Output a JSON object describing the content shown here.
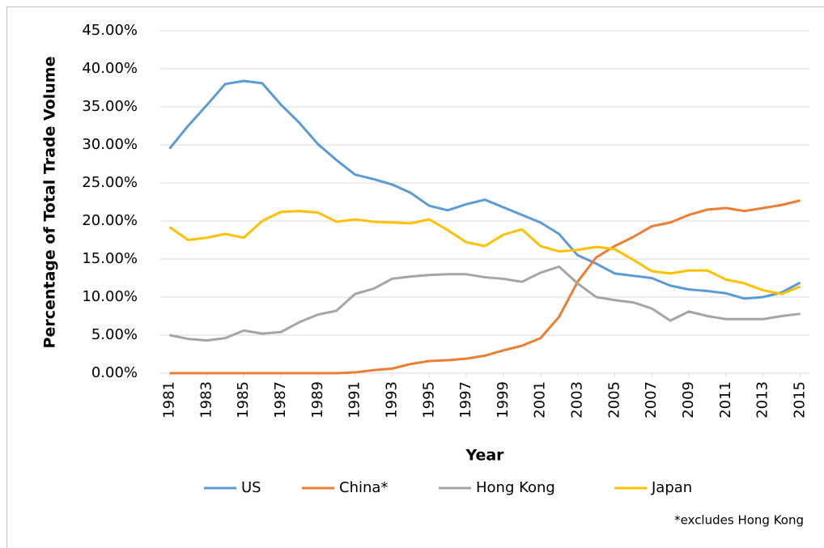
{
  "chart_data": {
    "type": "line",
    "y_label": "Percentage of Total Trade Volume",
    "x_label": "Year",
    "annotation": "*excludes Hong Kong",
    "x": [
      1981,
      1982,
      1983,
      1984,
      1985,
      1986,
      1987,
      1988,
      1989,
      1990,
      1991,
      1992,
      1993,
      1994,
      1995,
      1996,
      1997,
      1998,
      1999,
      2000,
      2001,
      2002,
      2003,
      2004,
      2005,
      2006,
      2007,
      2008,
      2009,
      2010,
      2011,
      2012,
      2013,
      2014,
      2015
    ],
    "xlim": [
      1980.5,
      2015.5
    ],
    "xticks": [
      1981,
      1983,
      1985,
      1987,
      1989,
      1991,
      1993,
      1995,
      1997,
      1999,
      2001,
      2003,
      2005,
      2007,
      2009,
      2011,
      2013,
      2015
    ],
    "ylim": [
      0,
      45
    ],
    "yticks": [
      {
        "value": 0,
        "label": "0.00%"
      },
      {
        "value": 5,
        "label": "5.00%"
      },
      {
        "value": 10,
        "label": "10.00%"
      },
      {
        "value": 15,
        "label": "15.00%"
      },
      {
        "value": 20,
        "label": "20.00%"
      },
      {
        "value": 25,
        "label": "25.00%"
      },
      {
        "value": 30,
        "label": "30.00%"
      },
      {
        "value": 35,
        "label": "35.00%"
      },
      {
        "value": 40,
        "label": "40.00%"
      },
      {
        "value": 45,
        "label": "45.00%"
      }
    ],
    "grid": true,
    "legend": "bottom",
    "series": [
      {
        "name": "US",
        "color": "#5b9bd5",
        "values": [
          29.5,
          32.5,
          35.2,
          38.0,
          38.4,
          38.1,
          35.3,
          32.9,
          30.1,
          28.0,
          26.1,
          25.5,
          24.8,
          23.7,
          22.0,
          21.4,
          22.2,
          22.8,
          21.8,
          20.8,
          19.8,
          18.3,
          15.5,
          14.4,
          13.1,
          12.8,
          12.5,
          11.5,
          11.0,
          10.8,
          10.5,
          9.8,
          10.0,
          10.6,
          11.9
        ]
      },
      {
        "name": "China*",
        "color": "#ed7d31",
        "values": [
          0,
          0,
          0,
          0,
          0,
          0,
          0,
          0,
          0,
          0,
          0.1,
          0.4,
          0.6,
          1.2,
          1.6,
          1.7,
          1.9,
          2.3,
          3.0,
          3.6,
          4.6,
          7.4,
          12.0,
          15.2,
          16.7,
          17.9,
          19.3,
          19.8,
          20.8,
          21.5,
          21.7,
          21.3,
          21.7,
          22.1,
          22.7
        ]
      },
      {
        "name": "Hong Kong",
        "color": "#a5a5a5",
        "values": [
          5.0,
          4.5,
          4.3,
          4.6,
          5.6,
          5.2,
          5.4,
          6.7,
          7.7,
          8.2,
          10.4,
          11.1,
          12.4,
          12.7,
          12.9,
          13.0,
          13.0,
          12.6,
          12.4,
          12.0,
          13.2,
          14.0,
          11.8,
          10.0,
          9.6,
          9.3,
          8.5,
          6.9,
          8.1,
          7.5,
          7.1,
          7.1,
          7.1,
          7.5,
          7.8
        ]
      },
      {
        "name": "Japan",
        "color": "#ffc000",
        "values": [
          19.2,
          17.5,
          17.8,
          18.3,
          17.8,
          20.0,
          21.2,
          21.3,
          21.1,
          19.9,
          20.2,
          19.9,
          19.8,
          19.7,
          20.2,
          18.8,
          17.2,
          16.7,
          18.2,
          18.9,
          16.7,
          16.0,
          16.2,
          16.6,
          16.3,
          14.9,
          13.4,
          13.1,
          13.5,
          13.5,
          12.3,
          11.8,
          10.9,
          10.4,
          11.4
        ]
      }
    ]
  }
}
